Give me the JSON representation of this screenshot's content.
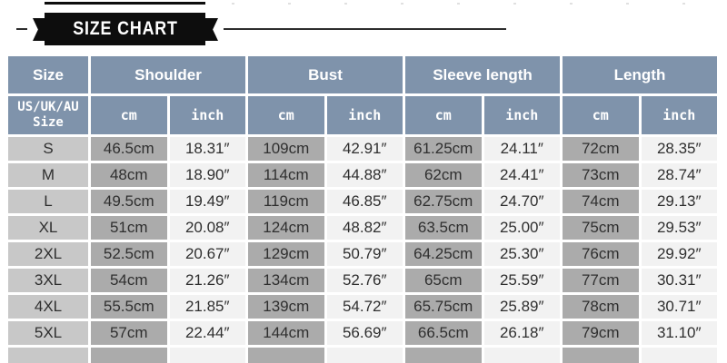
{
  "colors": {
    "ribbon_black": "#0d0d0d",
    "header_blue": "#7f93ab",
    "col_size": "#c8c8c8",
    "col_cm": "#ababab",
    "col_inch": "#f2f2f2",
    "data_text": "#2f2f2f"
  },
  "banner": {
    "title": "SIZE CHART"
  },
  "chart_data": {
    "type": "table",
    "title": "SIZE CHART",
    "group_headers": [
      {
        "label": "Size",
        "span": 1
      },
      {
        "label": "Shoulder",
        "span": 2
      },
      {
        "label": "Bust",
        "span": 2
      },
      {
        "label": "Sleeve length",
        "span": 2
      },
      {
        "label": "Length",
        "span": 2
      }
    ],
    "sub_headers": [
      "US/UK/AU\nSize",
      "cm",
      "inch",
      "cm",
      "inch",
      "cm",
      "inch",
      "cm",
      "inch"
    ],
    "rows": [
      [
        "S",
        "46.5cm",
        "18.31″",
        "109cm",
        "42.91″",
        "61.25cm",
        "24.11″",
        "72cm",
        "28.35″"
      ],
      [
        "M",
        "48cm",
        "18.90″",
        "114cm",
        "44.88″",
        "62cm",
        "24.41″",
        "73cm",
        "28.74″"
      ],
      [
        "L",
        "49.5cm",
        "19.49″",
        "119cm",
        "46.85″",
        "62.75cm",
        "24.70″",
        "74cm",
        "29.13″"
      ],
      [
        "XL",
        "51cm",
        "20.08″",
        "124cm",
        "48.82″",
        "63.5cm",
        "25.00″",
        "75cm",
        "29.53″"
      ],
      [
        "2XL",
        "52.5cm",
        "20.67″",
        "129cm",
        "50.79″",
        "64.25cm",
        "25.30″",
        "76cm",
        "29.92″"
      ],
      [
        "3XL",
        "54cm",
        "21.26″",
        "134cm",
        "52.76″",
        "65cm",
        "25.59″",
        "77cm",
        "30.31″"
      ],
      [
        "4XL",
        "55.5cm",
        "21.85″",
        "139cm",
        "54.72″",
        "65.75cm",
        "25.89″",
        "78cm",
        "30.71″"
      ],
      [
        "5XL",
        "57cm",
        "22.44″",
        "144cm",
        "56.69″",
        "66.5cm",
        "26.18″",
        "79cm",
        "31.10″"
      ]
    ]
  }
}
